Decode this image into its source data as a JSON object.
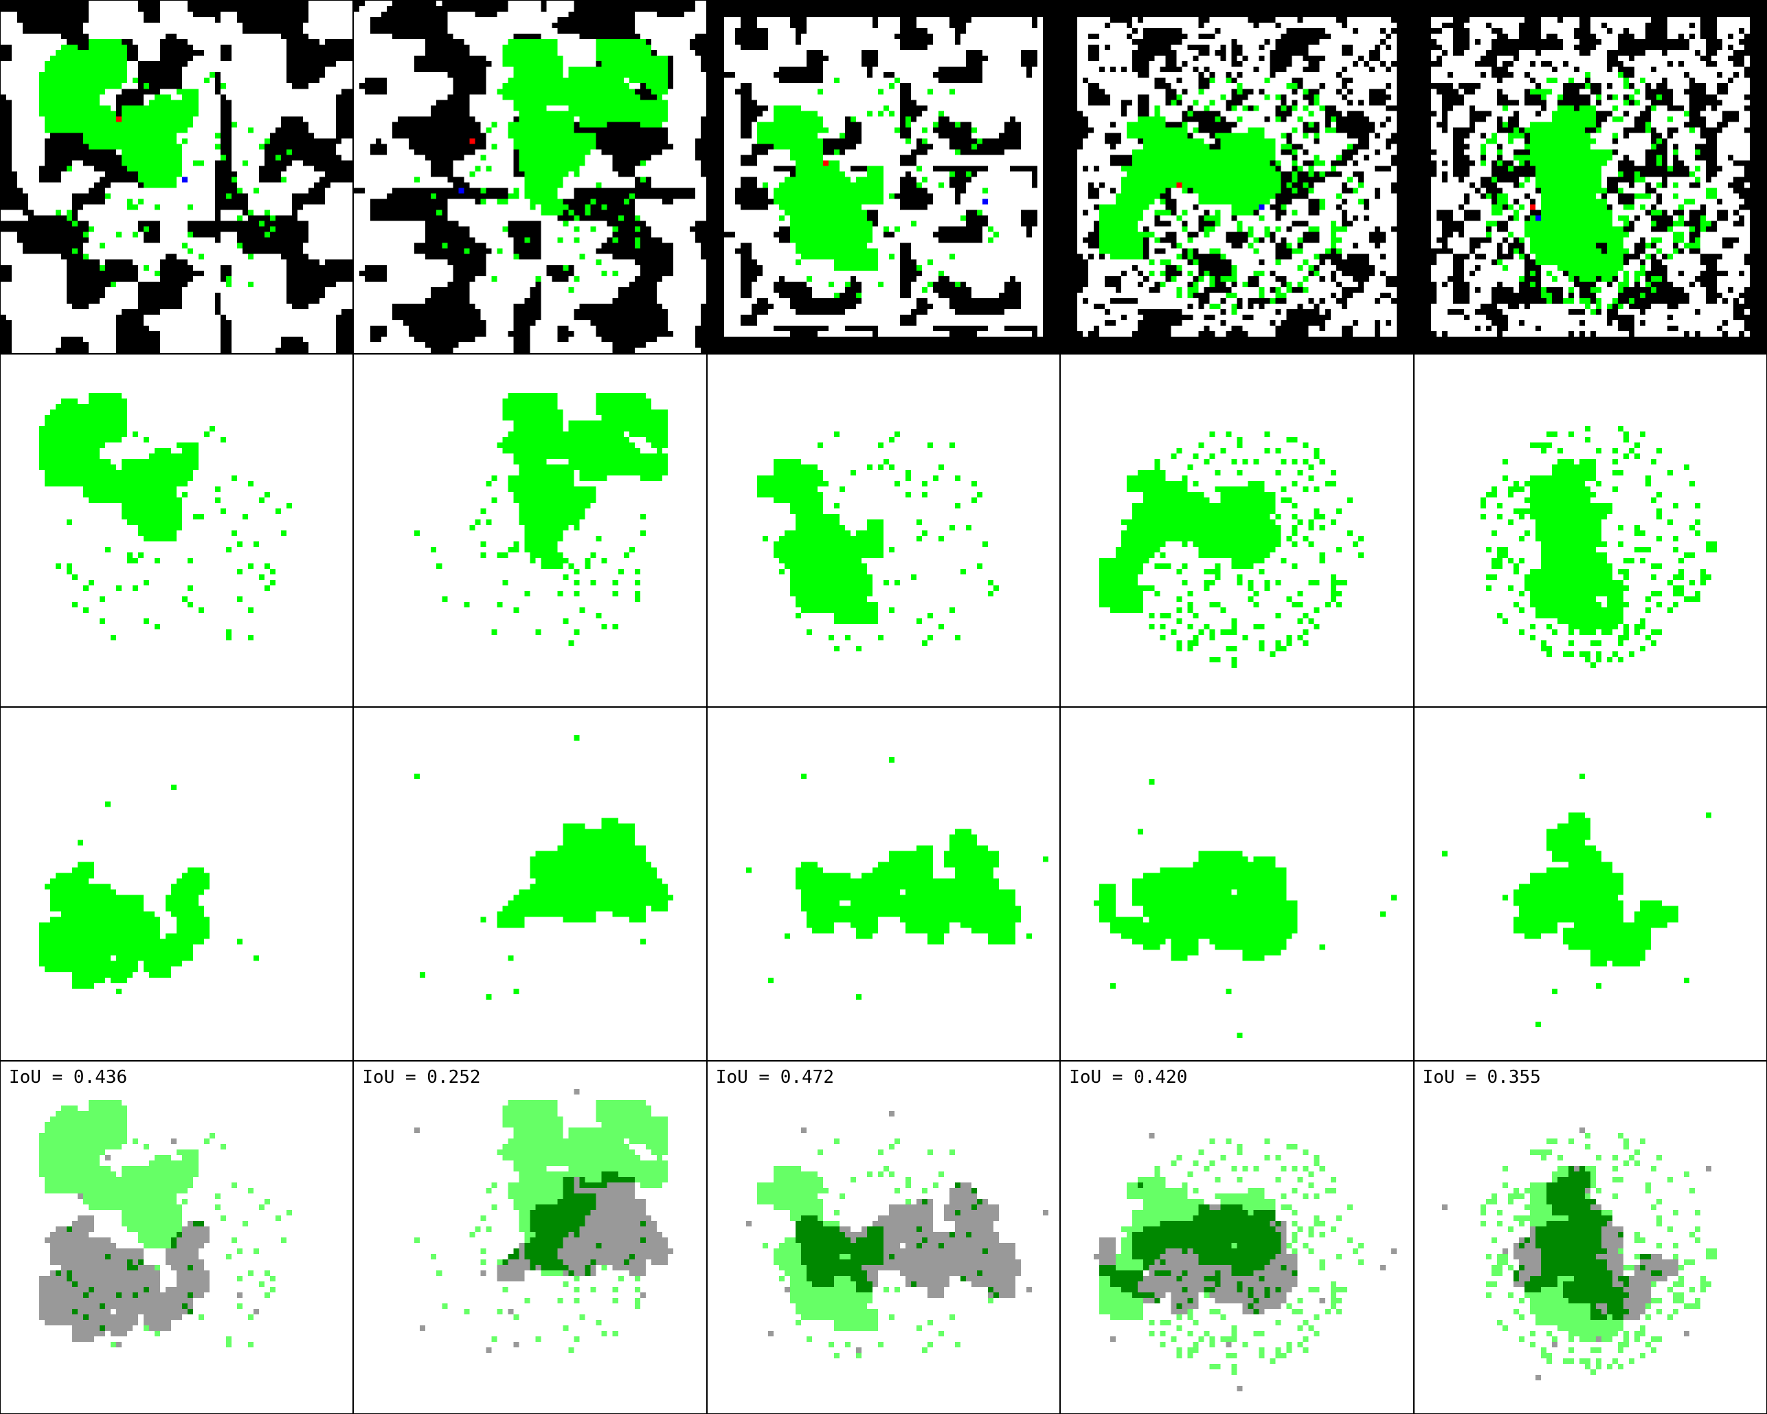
{
  "figure": {
    "columns": 5,
    "rows": [
      "maze-with-path",
      "target-path",
      "predicted-path",
      "overlay-comparison"
    ],
    "colors": {
      "wall": "#000000",
      "floor": "#ffffff",
      "path": "#00ff00",
      "start": "#ff0000",
      "goal": "#0000ff",
      "overlap": "#008800",
      "target_only": "#66ff66",
      "predicted_only": "#999999"
    }
  },
  "panels": [
    {
      "iou_text": "IoU = 0.436",
      "iou": 0.436
    },
    {
      "iou_text": "IoU = 0.252",
      "iou": 0.252
    },
    {
      "iou_text": "IoU = 0.472",
      "iou": 0.472
    },
    {
      "iou_text": "IoU = 0.420",
      "iou": 0.42
    },
    {
      "iou_text": "IoU = 0.355",
      "iou": 0.355
    }
  ]
}
